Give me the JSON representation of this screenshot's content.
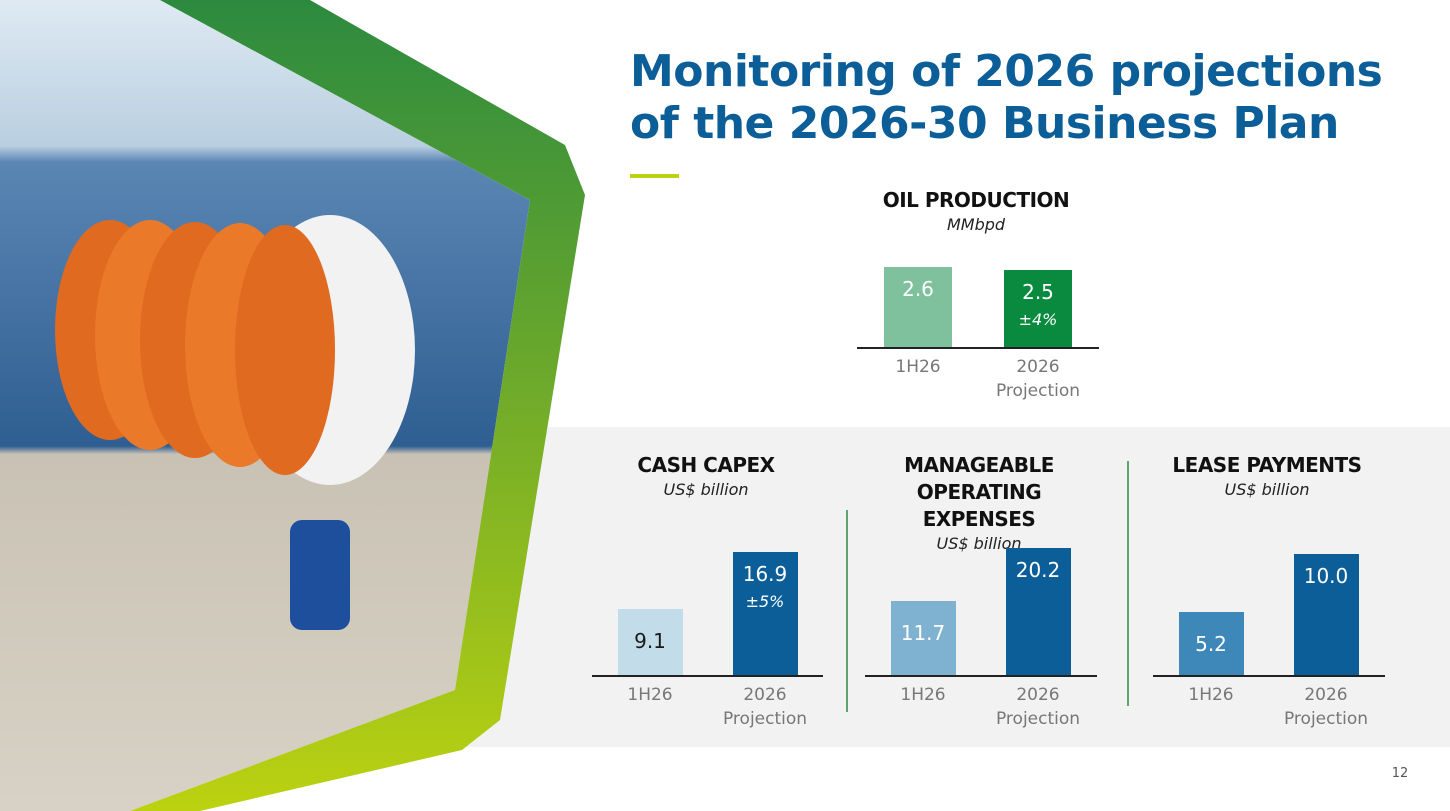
{
  "header": {
    "title": "Monitoring of 2026 projections of the 2026-30 Business Plan"
  },
  "chart_data": [
    {
      "type": "bar",
      "title": "OIL PRODUCTION",
      "subtitle": "MMbpd",
      "categories": [
        "1H26",
        "2026 Projection"
      ],
      "values": [
        2.6,
        2.5
      ],
      "colors": [
        "#7fc19d",
        "#0a8a3f"
      ],
      "annotation": "±4%"
    },
    {
      "type": "bar",
      "title": "CASH CAPEX",
      "subtitle": "US$ billion",
      "categories": [
        "1H26",
        "2026 Projection"
      ],
      "values": [
        9.1,
        16.9
      ],
      "colors": [
        "#c3dcea",
        "#0b5e97"
      ],
      "annotation": "±5%"
    },
    {
      "type": "bar",
      "title": "MANAGEABLE OPERATING EXPENSES",
      "subtitle": "US$ billion",
      "categories": [
        "1H26",
        "2026 Projection"
      ],
      "values": [
        11.7,
        20.2
      ],
      "colors": [
        "#7fb1d1",
        "#0b5e97"
      ]
    },
    {
      "type": "bar",
      "title": "LEASE PAYMENTS",
      "subtitle": "US$ billion",
      "categories": [
        "1H26",
        "2026 Projection"
      ],
      "values": [
        5.2,
        10.0
      ],
      "value_labels": [
        "5.2",
        "10.0"
      ],
      "colors": [
        "#3d88b8",
        "#0b5e97"
      ]
    }
  ],
  "page_number": "12"
}
